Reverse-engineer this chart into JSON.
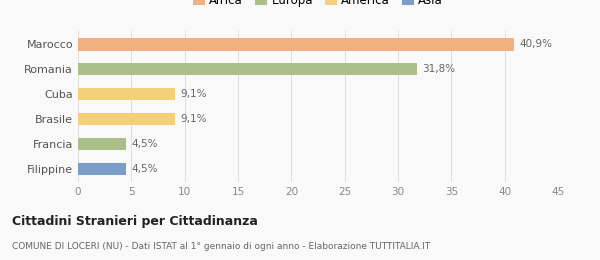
{
  "categories": [
    "Filippine",
    "Francia",
    "Brasile",
    "Cuba",
    "Romania",
    "Marocco"
  ],
  "values": [
    4.5,
    4.5,
    9.1,
    9.1,
    31.8,
    40.9
  ],
  "labels": [
    "4,5%",
    "4,5%",
    "9,1%",
    "9,1%",
    "31,8%",
    "40,9%"
  ],
  "colors": [
    "#7b9dc7",
    "#aabf8a",
    "#f5d07a",
    "#f5d07a",
    "#aabf8a",
    "#f0b080"
  ],
  "legend": [
    {
      "label": "Africa",
      "color": "#f0b080"
    },
    {
      "label": "Europa",
      "color": "#aabf8a"
    },
    {
      "label": "America",
      "color": "#f5d07a"
    },
    {
      "label": "Asia",
      "color": "#7b9dc7"
    }
  ],
  "xlim": [
    0,
    45
  ],
  "xticks": [
    0,
    5,
    10,
    15,
    20,
    25,
    30,
    35,
    40,
    45
  ],
  "title": "Cittadini Stranieri per Cittadinanza",
  "subtitle": "COMUNE DI LOCERI (NU) - Dati ISTAT al 1° gennaio di ogni anno - Elaborazione TUTTITALIA.IT",
  "background_color": "#f9f9f9",
  "bar_height": 0.5
}
